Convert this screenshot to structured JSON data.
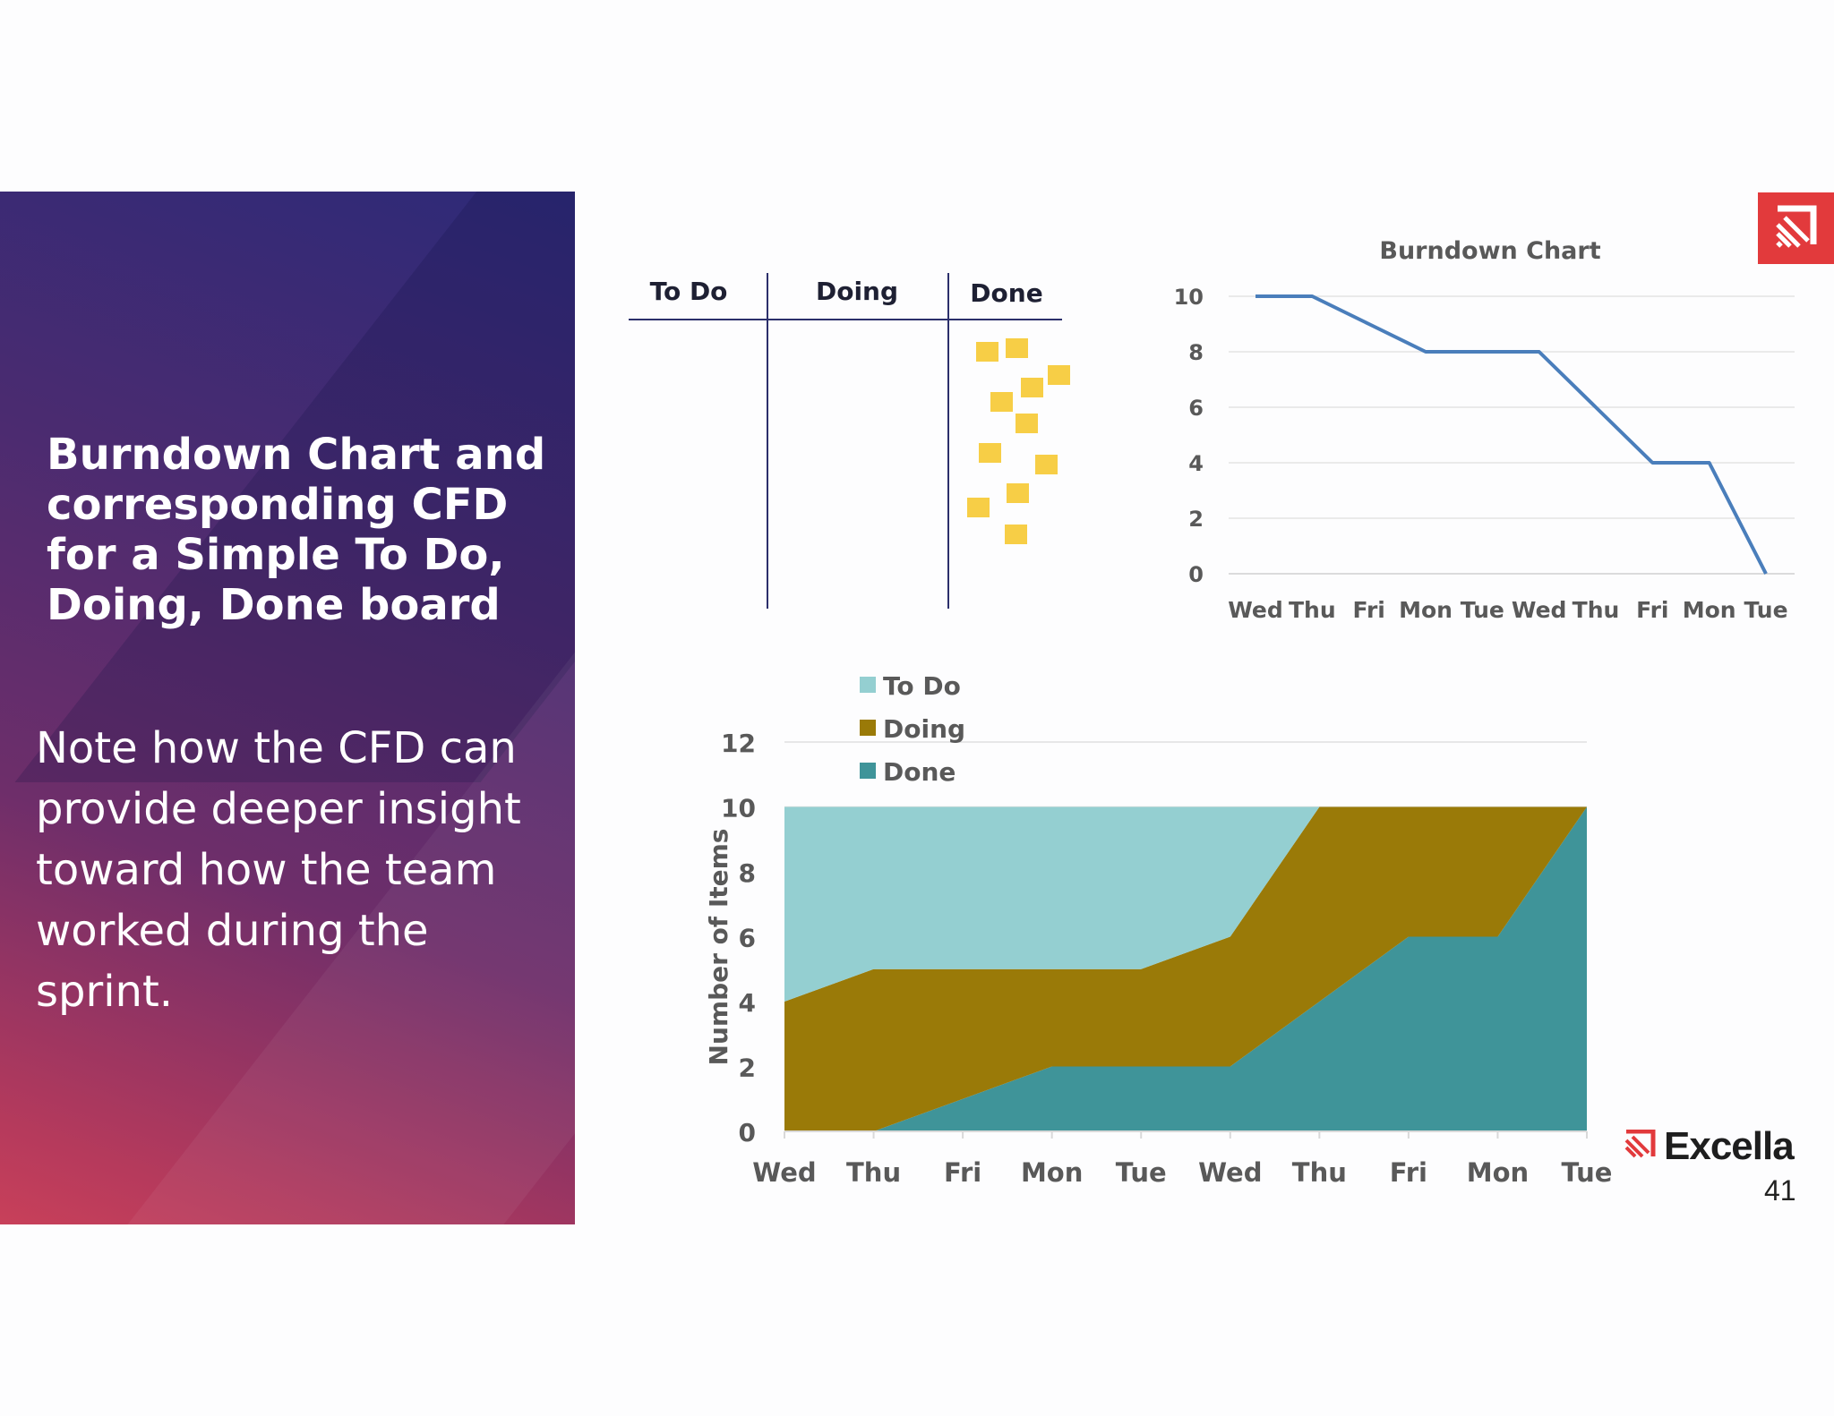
{
  "title": "Burndown Chart and corresponding CFD for a Simple To Do, Doing, Done board",
  "body": "Note how the CFD can provide deeper insight toward how the team worked during the sprint.",
  "brand": {
    "name": "Excella",
    "accent": "#e23a3c"
  },
  "page_number": "41",
  "board": {
    "columns": [
      "To Do",
      "Doing",
      "Done"
    ],
    "done_card_count": 11,
    "card_color": "#f7ce46"
  },
  "chart_data": [
    {
      "type": "line",
      "title": "Burndown Chart",
      "categories": [
        "Wed",
        "Thu",
        "Fri",
        "Mon",
        "Tue",
        "Wed",
        "Thu",
        "Fri",
        "Mon",
        "Tue"
      ],
      "series": [
        {
          "values": [
            10,
            10,
            9,
            8,
            8,
            8,
            6,
            4,
            4,
            0
          ]
        }
      ],
      "ylim": [
        0,
        10
      ],
      "yticks": [
        0,
        2,
        4,
        6,
        8,
        10
      ],
      "grid": true,
      "xlabel": "",
      "ylabel": "",
      "color": "#4a7ebb"
    },
    {
      "type": "area",
      "stacked": true,
      "title": "",
      "categories": [
        "Wed",
        "Thu",
        "Fri",
        "Mon",
        "Tue",
        "Wed",
        "Thu",
        "Fri",
        "Mon",
        "Tue"
      ],
      "series": [
        {
          "name": "To Do",
          "color": "#94cfd1",
          "values": [
            6,
            5,
            5,
            5,
            5,
            4,
            0,
            0,
            0,
            0
          ]
        },
        {
          "name": "Doing",
          "color": "#9a7a08",
          "values": [
            4,
            5,
            4,
            3,
            3,
            4,
            6,
            4,
            4,
            0
          ]
        },
        {
          "name": "Done",
          "color": "#3f9499",
          "values": [
            0,
            0,
            1,
            2,
            2,
            2,
            4,
            6,
            6,
            10
          ]
        }
      ],
      "ylim": [
        0,
        12
      ],
      "yticks": [
        0,
        2,
        4,
        6,
        8,
        10,
        12
      ],
      "ylabel": "Number of Items",
      "xlabel": "",
      "legend": "top-left"
    }
  ]
}
